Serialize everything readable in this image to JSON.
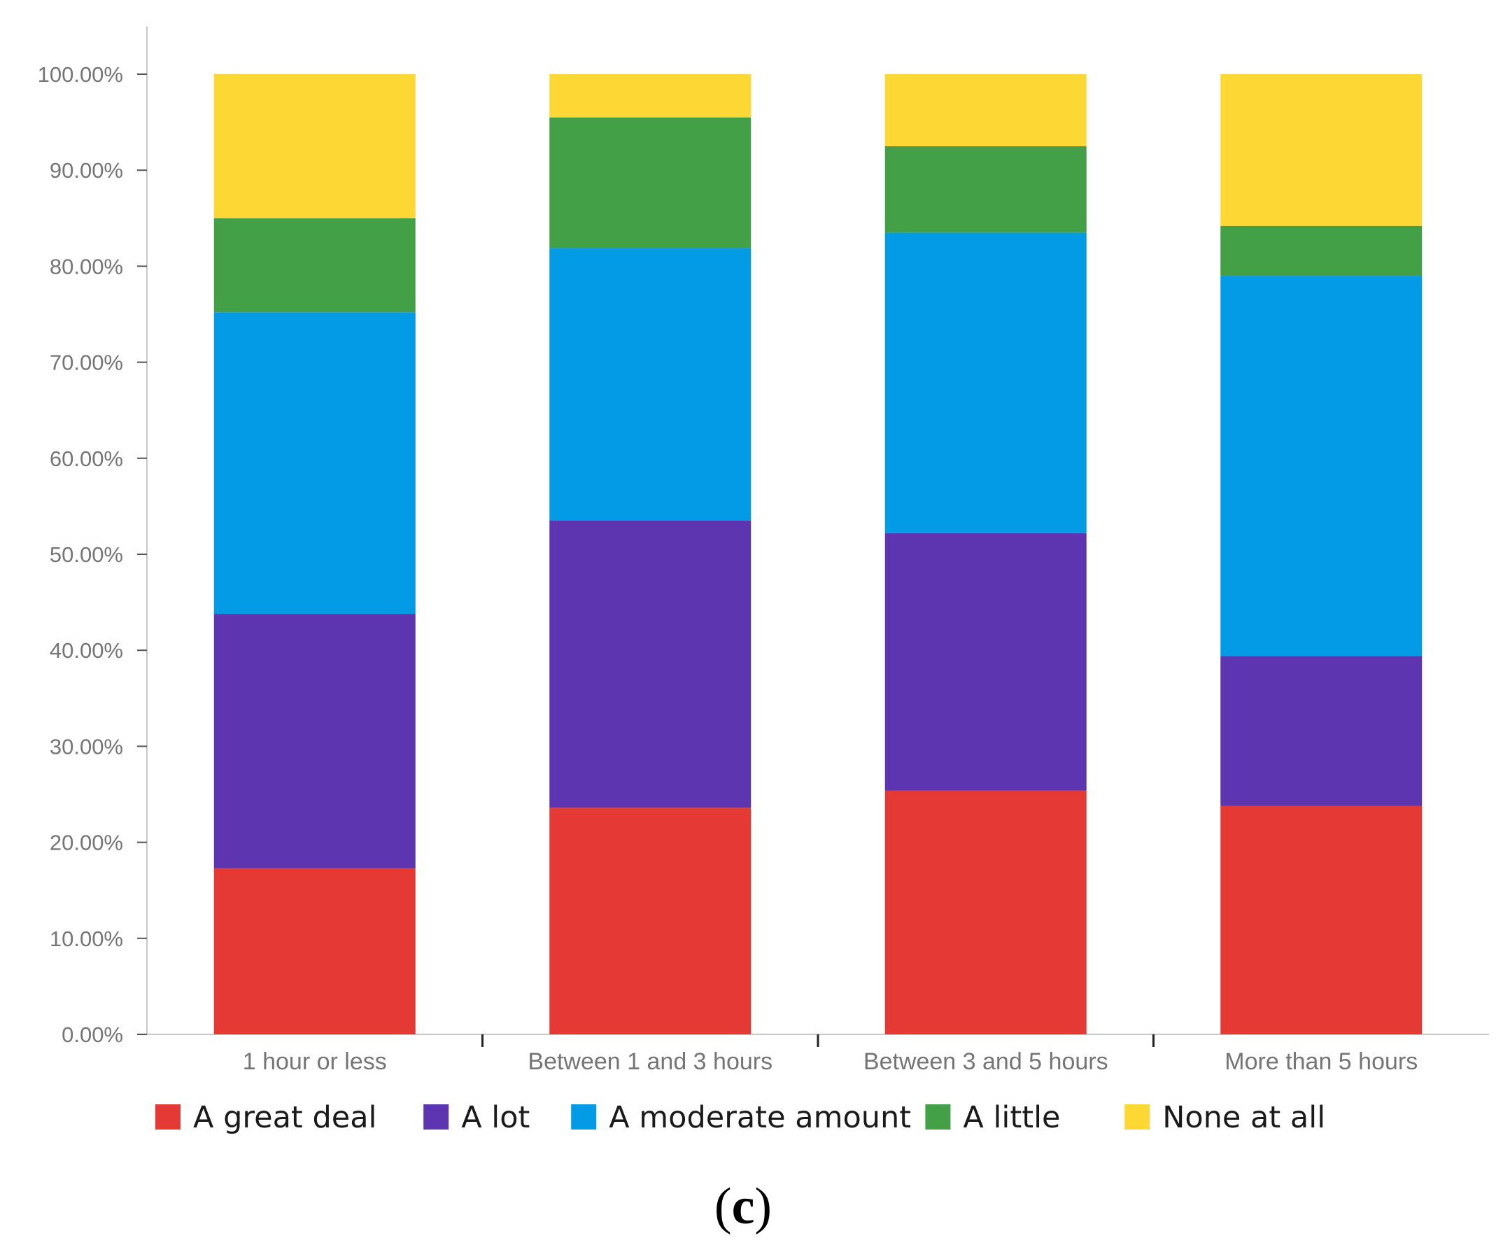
{
  "chart_data": {
    "type": "bar",
    "stacked": true,
    "categories": [
      "1 hour or less",
      "Between 1 and 3 hours",
      "Between 3 and 5 hours",
      "More than 5 hours"
    ],
    "series": [
      {
        "name": "A great deal",
        "color": "#e53935",
        "values": [
          17.3,
          23.6,
          25.4,
          23.8
        ]
      },
      {
        "name": "A lot",
        "color": "#5e35b1",
        "values": [
          26.5,
          29.9,
          26.8,
          15.6
        ]
      },
      {
        "name": "A moderate amount",
        "color": "#039be5",
        "values": [
          31.4,
          28.4,
          31.3,
          39.6
        ]
      },
      {
        "name": "A little",
        "color": "#43a047",
        "values": [
          9.8,
          13.6,
          9.0,
          5.2
        ]
      },
      {
        "name": "None at all",
        "color": "#fdd835",
        "values": [
          15.0,
          4.5,
          7.5,
          15.8
        ]
      }
    ],
    "yticks": [
      "0.00%",
      "10.00%",
      "20.00%",
      "30.00%",
      "40.00%",
      "50.00%",
      "60.00%",
      "70.00%",
      "80.00%",
      "90.00%",
      "100.00%"
    ],
    "ylim": [
      0,
      100
    ],
    "title": "",
    "xlabel": "",
    "ylabel": "",
    "legend_position": "bottom",
    "caption": {
      "open": "(",
      "letter": "c",
      "close": ")"
    }
  }
}
